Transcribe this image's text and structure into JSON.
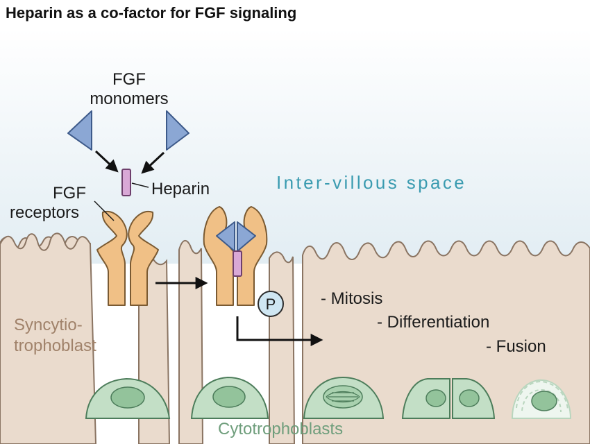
{
  "title": "Heparin as a co-factor for FGF signaling",
  "labels": {
    "fgf_monomers_line1": "FGF",
    "fgf_monomers_line2": "monomers",
    "heparin": "Heparin",
    "fgf_receptors_line1": "FGF",
    "fgf_receptors_line2": "receptors",
    "intervillous_space": "Inter-villous space",
    "syncytio_line1": "Syncytio-",
    "syncytio_line2": "trophoblast",
    "cytotrophoblasts": "Cytotrophoblasts",
    "phosphate": "P"
  },
  "outcomes": [
    "- Mitosis",
    "- Differentiation",
    "- Fusion"
  ],
  "colors": {
    "receptor": "#f2c48a",
    "fgf": "#8ba7d4",
    "heparin": "#d7a6d3",
    "tissue": "#eadbcd",
    "cell": "#bfdcc3",
    "nucleus": "#8fbf97",
    "space_gradient_top": "#ffffff",
    "space_gradient_bottom": "#e3eef4",
    "phosphate": "#cfe6f2"
  }
}
